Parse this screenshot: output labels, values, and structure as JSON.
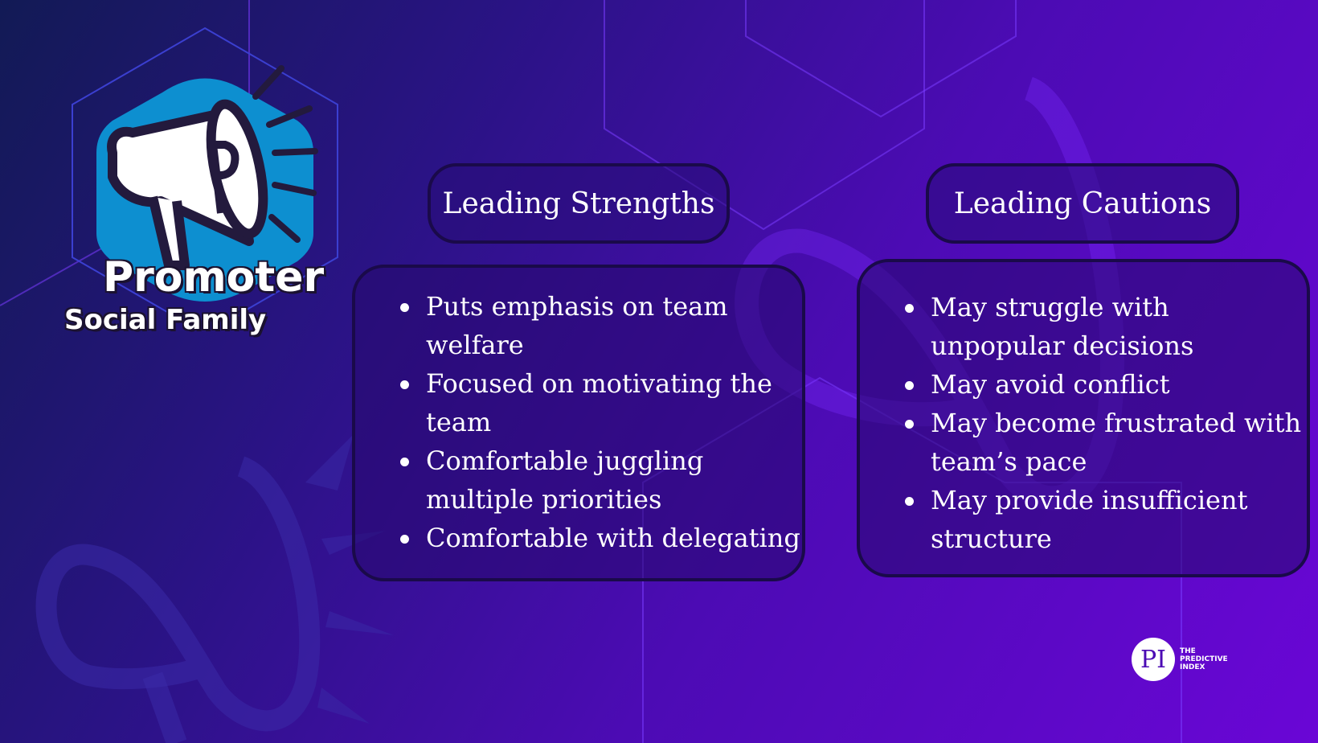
{
  "family": {
    "name": "Promoter",
    "group": "Social Family"
  },
  "strengths": {
    "heading": "Leading Strengths",
    "items": [
      "Puts emphasis on team welfare",
      "Focused on motivating the team",
      "Comfortable juggling multiple priorities",
      "Comfortable with delegating"
    ]
  },
  "cautions": {
    "heading": "Leading Cautions",
    "items": [
      "May struggle with unpopular decisions",
      "May avoid conflict",
      "May become frustrated with team’s pace",
      "May provide insufficient structure"
    ]
  },
  "logo": {
    "mark": "PI",
    "line1": "THE",
    "line2": "PREDICTIVE",
    "line3": "INDEX"
  },
  "colors": {
    "badge_blue": "#0d8fd0",
    "accent_purple": "#6a06d6",
    "dark_outline": "#1a0a4a"
  },
  "icons": [
    "megaphone-icon"
  ]
}
